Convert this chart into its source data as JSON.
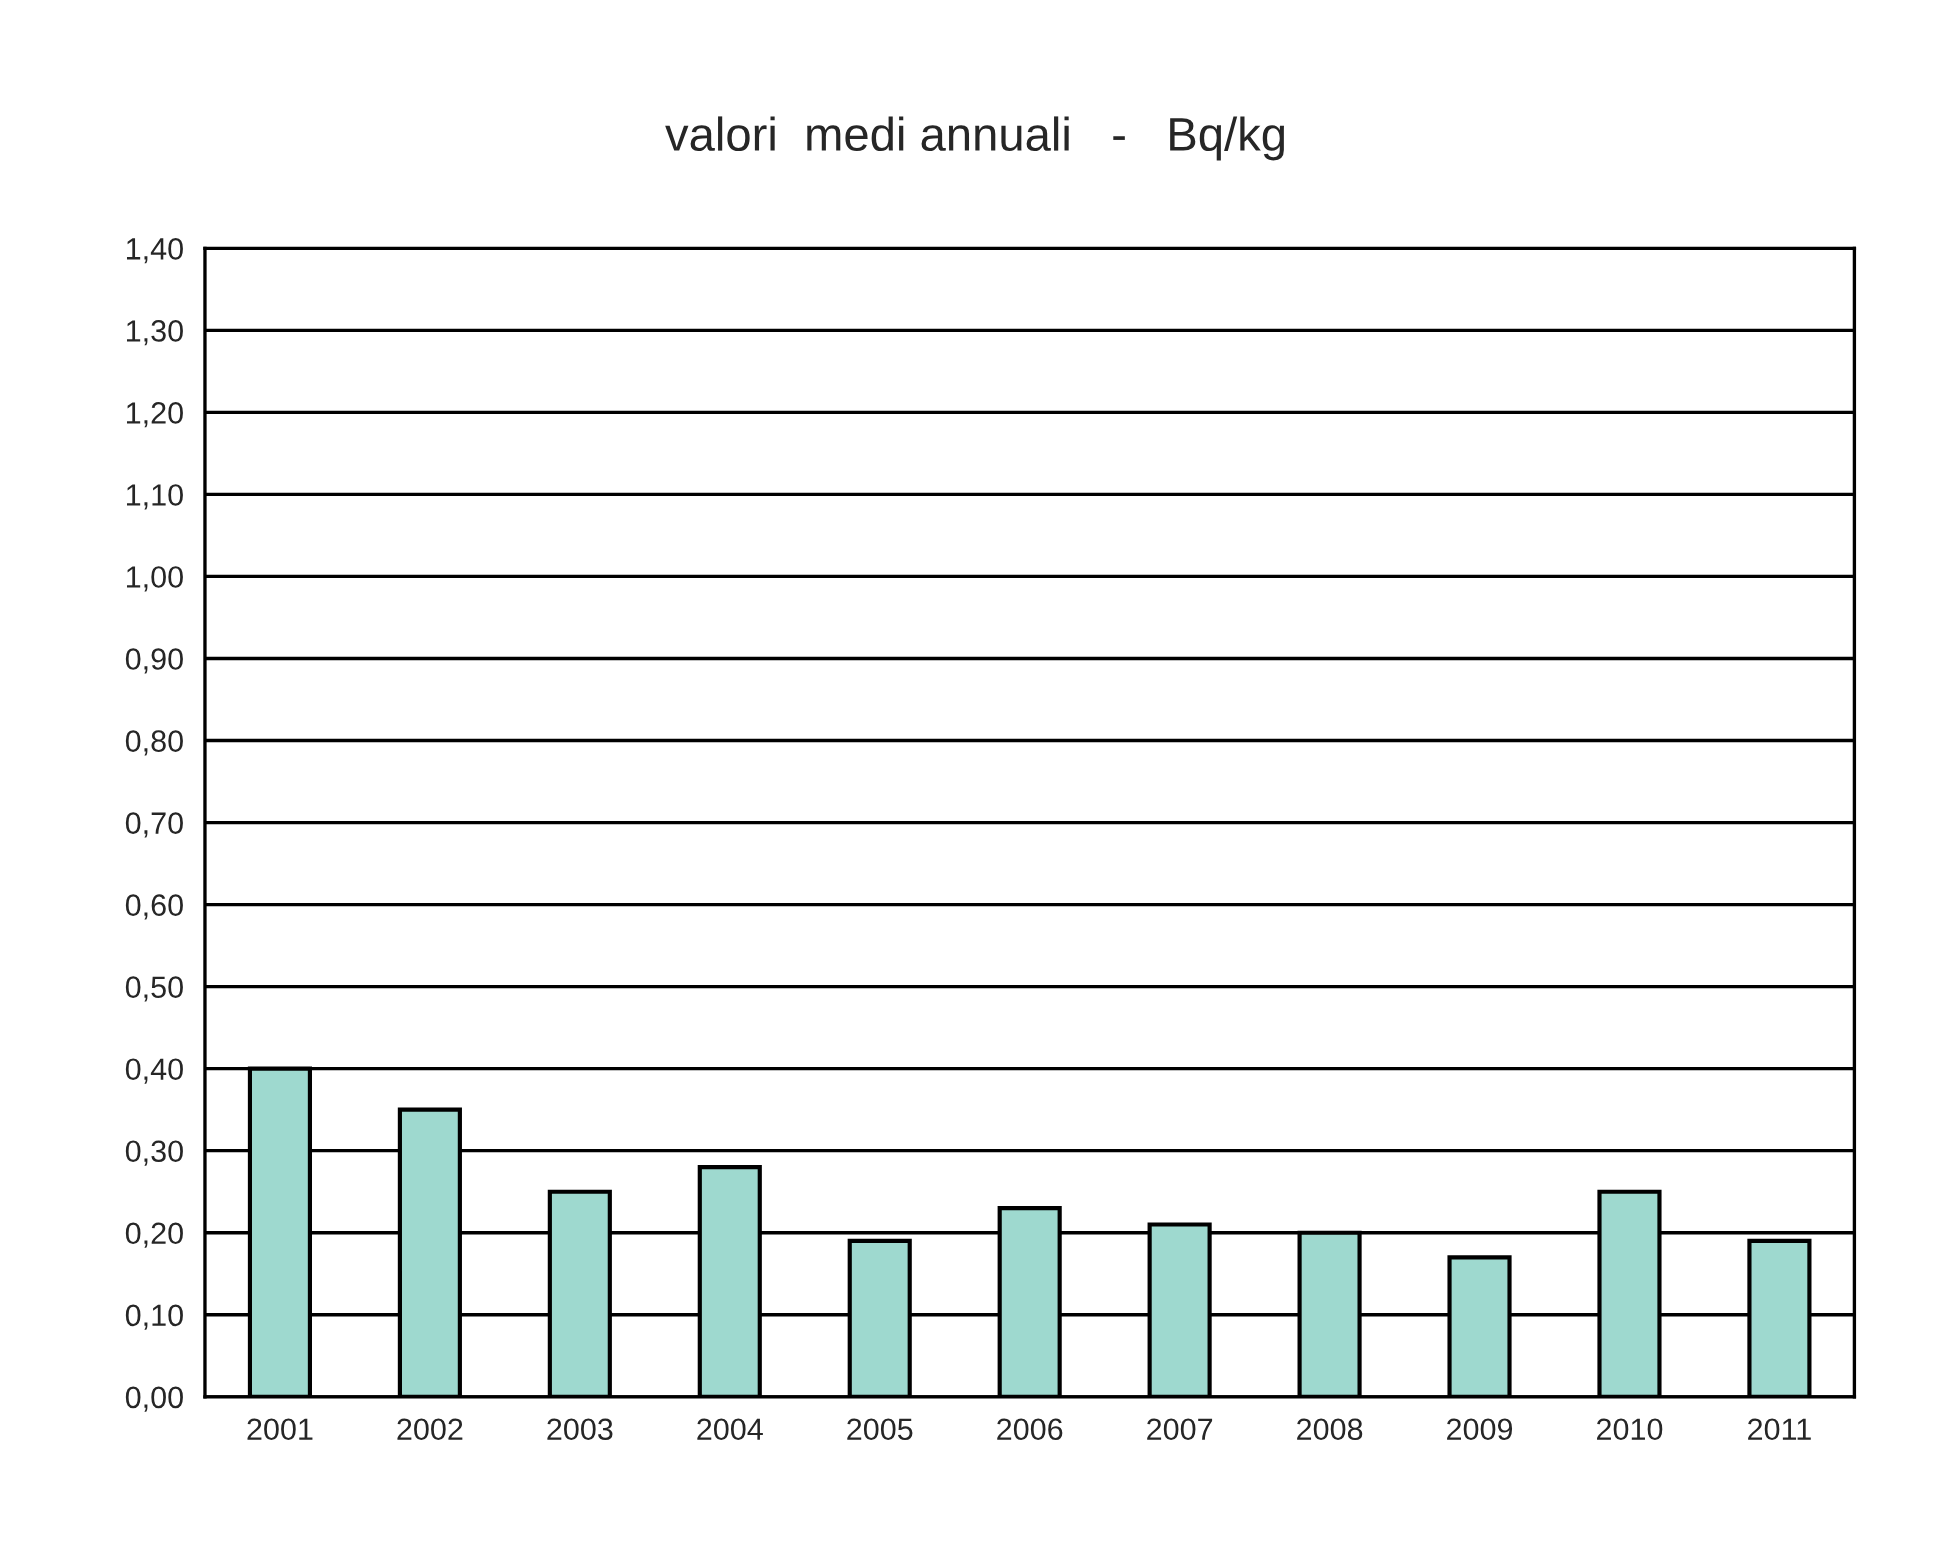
{
  "chart_data": {
    "type": "bar",
    "title": "valori  medi annuali   -   Bq/kg",
    "categories": [
      "2001",
      "2002",
      "2003",
      "2004",
      "2005",
      "2006",
      "2007",
      "2008",
      "2009",
      "2010",
      "2011"
    ],
    "values": [
      0.4,
      0.35,
      0.25,
      0.28,
      0.19,
      0.23,
      0.21,
      0.2,
      0.17,
      0.25,
      0.19
    ],
    "color": "#9ed9cf",
    "ylim": [
      0,
      1.4
    ],
    "yticks": [
      {
        "value": 0,
        "label": "0,00"
      },
      {
        "value": 0.1,
        "label": "0,10"
      },
      {
        "value": 0.2,
        "label": "0,20"
      },
      {
        "value": 0.3,
        "label": "0,30"
      },
      {
        "value": 0.4,
        "label": "0,40"
      },
      {
        "value": 0.5,
        "label": "0,50"
      },
      {
        "value": 0.6,
        "label": "0,60"
      },
      {
        "value": 0.7,
        "label": "0,70"
      },
      {
        "value": 0.8,
        "label": "0,80"
      },
      {
        "value": 0.9,
        "label": "0,90"
      },
      {
        "value": 1.0,
        "label": "1,00"
      },
      {
        "value": 1.1,
        "label": "1,10"
      },
      {
        "value": 1.2,
        "label": "1,20"
      },
      {
        "value": 1.3,
        "label": "1,30"
      },
      {
        "value": 1.4,
        "label": "1,40"
      }
    ],
    "grid": "y"
  }
}
